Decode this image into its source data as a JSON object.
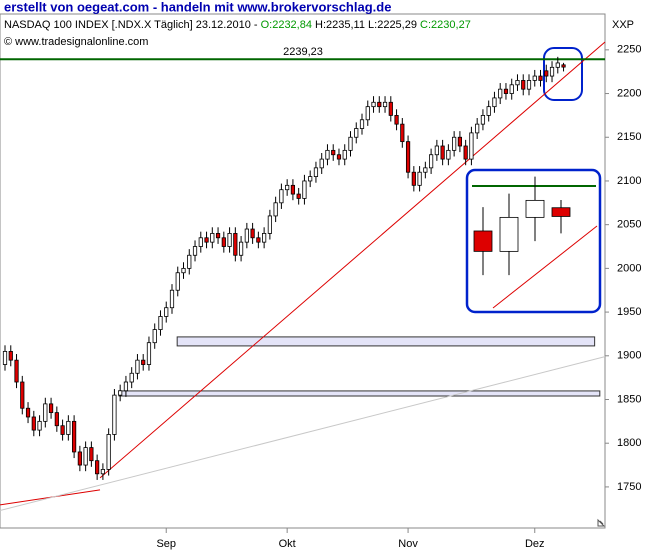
{
  "header": {
    "title": "erstellt von oegeat.com - handeln mit www.brokervorschlag.de"
  },
  "chart_data": {
    "type": "candlestick",
    "symbol_info": "NASDAQ 100 INDEX [.NDX.X  Täglich] 23.12.2010 -",
    "open_label": "O:2232,84",
    "hl_label": "H:2235,11 L:2225,29",
    "close_label": "C:2230,27",
    "copyright": "© www.tradesignalonline.com",
    "corner_label": "XXP",
    "open": [
      1890,
      1905,
      1895,
      1870,
      1840,
      1830,
      1815,
      1825,
      1845,
      1835,
      1820,
      1810,
      1825,
      1790,
      1775,
      1795,
      1780,
      1765,
      1770,
      1810,
      1855,
      1860,
      1870,
      1880,
      1895,
      1890,
      1915,
      1930,
      1945,
      1955,
      1975,
      1995,
      2000,
      2015,
      2025,
      2035,
      2030,
      2040,
      2035,
      2025,
      2040,
      2015,
      2030,
      2045,
      2035,
      2030,
      2040,
      2060,
      2075,
      2090,
      2095,
      2085,
      2080,
      2100,
      2105,
      2115,
      2125,
      2135,
      2130,
      2125,
      2135,
      2150,
      2160,
      2170,
      2185,
      2190,
      2185,
      2190,
      2175,
      2165,
      2145,
      2110,
      2095,
      2110,
      2115,
      2130,
      2140,
      2125,
      2135,
      2150,
      2140,
      2125,
      2155,
      2165,
      2175,
      2185,
      2195,
      2205,
      2200,
      2210,
      2215,
      2205,
      2215,
      2220,
      2226,
      2220,
      2230,
      2232.84
    ],
    "high": [
      1912,
      1912,
      1902,
      1877,
      1847,
      1837,
      1832,
      1852,
      1852,
      1842,
      1827,
      1832,
      1832,
      1797,
      1802,
      1802,
      1787,
      1777,
      1817,
      1862,
      1867,
      1877,
      1887,
      1902,
      1902,
      1922,
      1937,
      1952,
      1962,
      1982,
      2002,
      2007,
      2022,
      2032,
      2042,
      2042,
      2047,
      2047,
      2042,
      2047,
      2047,
      2037,
      2052,
      2052,
      2042,
      2047,
      2067,
      2082,
      2097,
      2102,
      2102,
      2092,
      2107,
      2112,
      2122,
      2132,
      2142,
      2142,
      2137,
      2142,
      2157,
      2167,
      2177,
      2192,
      2197,
      2197,
      2197,
      2197,
      2182,
      2172,
      2152,
      2117,
      2117,
      2122,
      2137,
      2147,
      2147,
      2142,
      2157,
      2157,
      2147,
      2162,
      2172,
      2182,
      2192,
      2202,
      2212,
      2212,
      2217,
      2222,
      2222,
      2222,
      2227,
      2227,
      2233,
      2237,
      2242,
      2235.11
    ],
    "low": [
      1883,
      1888,
      1863,
      1833,
      1823,
      1808,
      1808,
      1818,
      1828,
      1813,
      1803,
      1803,
      1783,
      1768,
      1768,
      1773,
      1758,
      1758,
      1763,
      1803,
      1848,
      1853,
      1863,
      1873,
      1883,
      1883,
      1908,
      1923,
      1938,
      1948,
      1968,
      1988,
      1993,
      2008,
      2018,
      2023,
      2023,
      2028,
      2018,
      2018,
      2008,
      2008,
      2023,
      2028,
      2023,
      2023,
      2033,
      2053,
      2068,
      2083,
      2078,
      2073,
      2073,
      2093,
      2098,
      2108,
      2118,
      2123,
      2118,
      2118,
      2128,
      2143,
      2153,
      2163,
      2178,
      2178,
      2178,
      2168,
      2158,
      2138,
      2103,
      2088,
      2088,
      2103,
      2108,
      2123,
      2118,
      2118,
      2128,
      2133,
      2118,
      2118,
      2148,
      2158,
      2168,
      2178,
      2188,
      2193,
      2193,
      2203,
      2198,
      2198,
      2208,
      2208,
      2213,
      2213,
      2223,
      2225.29
    ],
    "close": [
      1905,
      1895,
      1870,
      1840,
      1830,
      1815,
      1825,
      1845,
      1835,
      1820,
      1810,
      1825,
      1790,
      1775,
      1795,
      1780,
      1765,
      1770,
      1810,
      1855,
      1860,
      1870,
      1880,
      1895,
      1890,
      1915,
      1930,
      1945,
      1955,
      1975,
      1995,
      2000,
      2015,
      2025,
      2035,
      2030,
      2040,
      2035,
      2025,
      2040,
      2015,
      2030,
      2045,
      2035,
      2030,
      2040,
      2060,
      2075,
      2090,
      2095,
      2085,
      2080,
      2100,
      2105,
      2115,
      2125,
      2135,
      2130,
      2125,
      2135,
      2150,
      2160,
      2170,
      2185,
      2190,
      2185,
      2190,
      2175,
      2165,
      2145,
      2110,
      2095,
      2110,
      2115,
      2130,
      2140,
      2125,
      2135,
      2150,
      2140,
      2125,
      2155,
      2165,
      2175,
      2185,
      2195,
      2205,
      2200,
      2210,
      2215,
      2205,
      2215,
      2220,
      2215,
      2220,
      2230,
      2235,
      2230.27
    ],
    "up_color": "#ffffff",
    "down_color": "#dd0000",
    "xlim": [
      -0.87,
      104.2
    ],
    "xticks": [
      {
        "value": 28,
        "label": "Sep"
      },
      {
        "value": 49,
        "label": "Okt"
      },
      {
        "value": 70,
        "label": "Nov"
      },
      {
        "value": 92,
        "label": "Dez"
      }
    ],
    "ylim": [
      1703,
      2291
    ],
    "yticks": [
      1750,
      1800,
      1850,
      1900,
      1950,
      2000,
      2050,
      2100,
      2150,
      2200,
      2250
    ],
    "level": {
      "value": 2239.23,
      "label": "2239,23",
      "color": "#006600"
    },
    "zones": [
      {
        "low": 1911.3,
        "high": 1921.6,
        "x": [
          29.9,
          102.4
        ]
      },
      {
        "low": 1854,
        "high": 1859.8,
        "x": [
          19.8,
          103.3
        ]
      }
    ],
    "trendlines": [
      {
        "x": [
          16.5,
          104.2
        ],
        "y": [
          1760.3,
          2259
        ],
        "color": "#dd0000"
      },
      {
        "x": [
          -0.87,
          16.5
        ],
        "y": [
          1729.4,
          1746.6
        ],
        "color": "#dd0000"
      },
      {
        "x": [
          -0.87,
          104.2
        ],
        "y": [
          1723,
          1899
        ],
        "color": "#c8c8c8"
      }
    ]
  }
}
